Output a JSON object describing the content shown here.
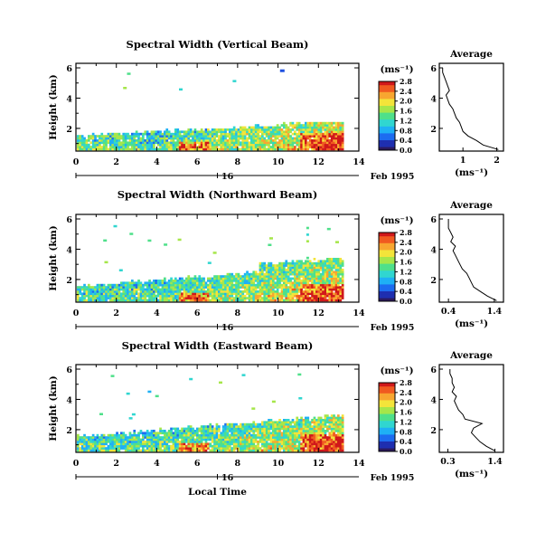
{
  "chart_data": [
    {
      "type": "heatmap",
      "title": "Spectral Width (Vertical Beam)",
      "ylabel": "Height (km)",
      "xlabel": "",
      "x_ticks": [
        "0",
        "2",
        "4",
        "6",
        "8",
        "10",
        "12",
        "14"
      ],
      "y_ticks": [
        "2",
        "4",
        "6"
      ],
      "xlim": [
        0,
        14
      ],
      "ylim": [
        0.5,
        6.3
      ],
      "date_label": "Feb 1995",
      "day_marker": "16",
      "colorbar": {
        "unit": "(ms⁻¹)",
        "ticks": [
          "0.0",
          "0.4",
          "0.8",
          "1.2",
          "1.6",
          "2.0",
          "2.4",
          "2.8"
        ]
      },
      "cells": [
        [
          0,
          1.5,
          1
        ],
        [
          1,
          1.6,
          0
        ],
        [
          2,
          1.5,
          1
        ],
        [
          3,
          1.5,
          2
        ],
        [
          4,
          1.6,
          1
        ],
        [
          5,
          1.5,
          0
        ],
        [
          6,
          1.5,
          1
        ],
        [
          7,
          1.6,
          2
        ],
        [
          8,
          1.5,
          1
        ],
        [
          9,
          1.5,
          0
        ],
        [
          10,
          1.6,
          1
        ],
        [
          11,
          1.5,
          2
        ],
        [
          12,
          1.5,
          1
        ],
        [
          13,
          1.6,
          0
        ],
        [
          14,
          1.5,
          1
        ],
        [
          15,
          1.6,
          2
        ],
        [
          16,
          1.5,
          3
        ],
        [
          17,
          1.5,
          2
        ],
        [
          18,
          1.6,
          1
        ],
        [
          19,
          1.5,
          0
        ],
        [
          20,
          1.5,
          2
        ],
        [
          21,
          1.6,
          3
        ],
        [
          22,
          1.5,
          2
        ],
        [
          23,
          1.5,
          1
        ],
        [
          24,
          1.6,
          2
        ],
        [
          25,
          1.5,
          3
        ],
        [
          26,
          1.5,
          2
        ],
        [
          27,
          1.6,
          1
        ],
        [
          28,
          1.5,
          0
        ],
        [
          29,
          1.5,
          1
        ],
        [
          30,
          1.6,
          2
        ],
        [
          31,
          1.5,
          3
        ],
        [
          32,
          1.5,
          2
        ],
        [
          33,
          1.6,
          1
        ],
        [
          34,
          1.5,
          2
        ],
        [
          35,
          1.5,
          1
        ],
        [
          36,
          1.6,
          0
        ],
        [
          37,
          1.5,
          1
        ],
        [
          38,
          1.5,
          2
        ],
        [
          39,
          1.6,
          3
        ],
        [
          40,
          1.5,
          2
        ],
        [
          41,
          1.5,
          1
        ],
        [
          42,
          1.6,
          2
        ],
        [
          43,
          1.5,
          3
        ],
        [
          44,
          1.5,
          2
        ],
        [
          45,
          1.6,
          1
        ],
        [
          46,
          1.5,
          2
        ],
        [
          47,
          1.5,
          3
        ],
        [
          48,
          1.6,
          2
        ],
        [
          49,
          1.5,
          1
        ],
        [
          50,
          1.5,
          2
        ],
        [
          51,
          1.6,
          3
        ],
        [
          52,
          1.5,
          2
        ]
      ],
      "profile": {
        "title": "Average",
        "xlabel": "(ms⁻¹)",
        "x_ticks": [
          "1",
          "2"
        ],
        "xlim": [
          0.3,
          2.2
        ],
        "y_ticks": [
          "2",
          "4",
          "6"
        ],
        "ylim": [
          0.5,
          6.3
        ],
        "heights": [
          0.6,
          0.9,
          1.2,
          1.5,
          1.8,
          2.1,
          2.4,
          2.7,
          3.0,
          3.3,
          3.6,
          3.9,
          4.2,
          4.5,
          4.8,
          5.1,
          5.4,
          5.7,
          6.0
        ],
        "values": [
          2.05,
          1.6,
          1.4,
          1.15,
          1.0,
          0.95,
          0.9,
          0.8,
          0.75,
          0.7,
          0.6,
          0.55,
          0.5,
          0.6,
          0.55,
          0.5,
          0.45,
          0.4,
          0.4
        ]
      }
    },
    {
      "type": "heatmap",
      "title": "Spectral Width (Northward Beam)",
      "ylabel": "Height (km)",
      "xlabel": "",
      "x_ticks": [
        "0",
        "2",
        "4",
        "6",
        "8",
        "10",
        "12",
        "14"
      ],
      "y_ticks": [
        "2",
        "4",
        "6"
      ],
      "xlim": [
        0,
        14
      ],
      "ylim": [
        0.5,
        6.3
      ],
      "date_label": "Feb 1995",
      "day_marker": "16",
      "colorbar": {
        "unit": "(ms⁻¹)",
        "ticks": [
          "0.0",
          "0.4",
          "0.8",
          "1.2",
          "1.6",
          "2.0",
          "2.4",
          "2.8"
        ]
      },
      "profile": {
        "title": "Average",
        "xlabel": "(ms⁻¹)",
        "x_ticks": [
          "0.4",
          "1.4"
        ],
        "xlim": [
          0.2,
          1.6
        ],
        "y_ticks": [
          "2",
          "4",
          "6"
        ],
        "ylim": [
          0.5,
          6.3
        ],
        "heights": [
          0.6,
          0.9,
          1.2,
          1.5,
          1.8,
          2.1,
          2.4,
          2.7,
          3.0,
          3.3,
          3.6,
          3.9,
          4.2,
          4.5,
          4.8,
          5.1,
          5.4,
          5.7,
          6.0
        ],
        "values": [
          1.45,
          1.25,
          1.1,
          0.95,
          0.9,
          0.85,
          0.8,
          0.7,
          0.65,
          0.6,
          0.55,
          0.5,
          0.55,
          0.45,
          0.5,
          0.45,
          0.4,
          0.4,
          0.4
        ]
      }
    },
    {
      "type": "heatmap",
      "title": "Spectral Width (Eastward Beam)",
      "ylabel": "Height (km)",
      "xlabel": "Local Time",
      "x_ticks": [
        "0",
        "2",
        "4",
        "6",
        "8",
        "10",
        "12",
        "14"
      ],
      "y_ticks": [
        "2",
        "4",
        "6"
      ],
      "xlim": [
        0,
        14
      ],
      "ylim": [
        0.5,
        6.3
      ],
      "date_label": "Feb 1995",
      "day_marker": "16",
      "colorbar": {
        "unit": "(ms⁻¹)",
        "ticks": [
          "0.0",
          "0.4",
          "0.8",
          "1.2",
          "1.6",
          "2.0",
          "2.4",
          "2.8"
        ]
      },
      "profile": {
        "title": "Average",
        "xlabel": "(ms⁻¹)",
        "x_ticks": [
          "0.3",
          "1.4"
        ],
        "xlim": [
          0.1,
          1.6
        ],
        "y_ticks": [
          "2",
          "4",
          "6"
        ],
        "ylim": [
          0.5,
          6.3
        ],
        "heights": [
          0.6,
          0.9,
          1.2,
          1.5,
          1.8,
          2.1,
          2.4,
          2.7,
          3.0,
          3.3,
          3.6,
          3.9,
          4.2,
          4.5,
          4.8,
          5.1,
          5.4,
          5.7,
          6.0
        ],
        "values": [
          1.4,
          1.2,
          1.05,
          0.95,
          0.85,
          0.9,
          1.1,
          0.7,
          0.65,
          0.55,
          0.5,
          0.45,
          0.5,
          0.4,
          0.45,
          0.4,
          0.4,
          0.35,
          0.35
        ]
      }
    }
  ]
}
